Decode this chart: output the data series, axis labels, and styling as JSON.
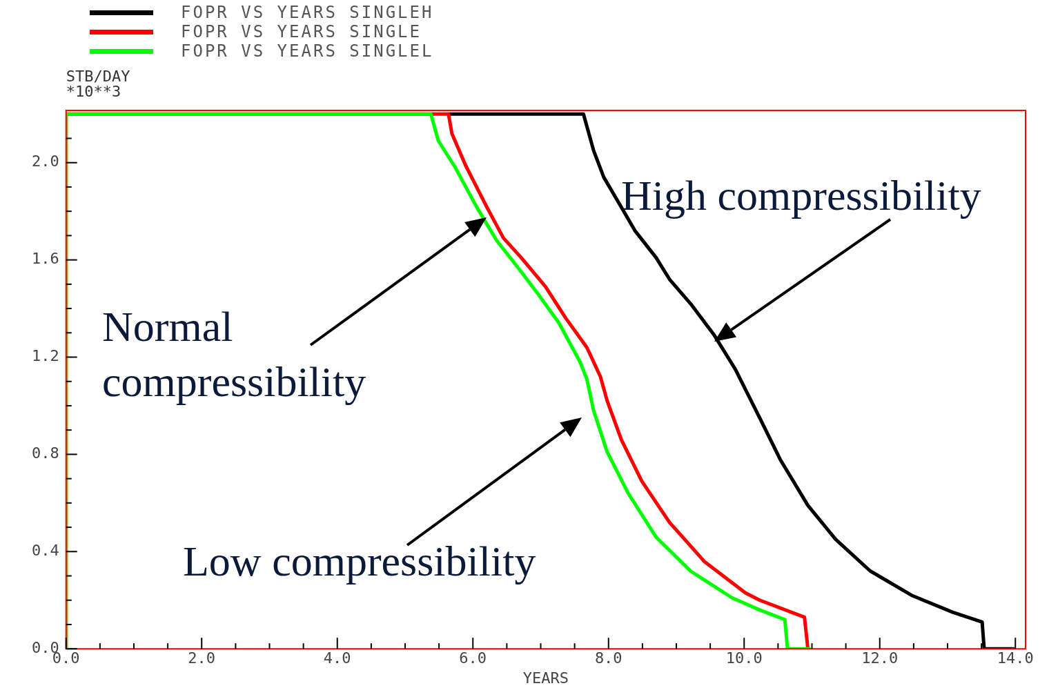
{
  "chart_data": {
    "type": "line",
    "xlabel": "YEARS",
    "ylabel": "STB/DAY\n*10**3",
    "legend": "top left",
    "grid": false,
    "line_style": "solid",
    "xlim": [
      0,
      14.15
    ],
    "ylim": [
      0,
      2.215
    ],
    "xticks": [
      {
        "value": 0,
        "label": "0.0"
      },
      {
        "value": 0.5,
        "label": null
      },
      {
        "value": 1,
        "label": null
      },
      {
        "value": 1.5,
        "label": null
      },
      {
        "value": 2,
        "label": "2.0"
      },
      {
        "value": 2.5,
        "label": null
      },
      {
        "value": 3,
        "label": null
      },
      {
        "value": 3.5,
        "label": null
      },
      {
        "value": 4,
        "label": "4.0"
      },
      {
        "value": 4.5,
        "label": null
      },
      {
        "value": 5,
        "label": null
      },
      {
        "value": 5.5,
        "label": null
      },
      {
        "value": 6,
        "label": "6.0"
      },
      {
        "value": 6.5,
        "label": null
      },
      {
        "value": 7,
        "label": null
      },
      {
        "value": 7.5,
        "label": null
      },
      {
        "value": 8,
        "label": "8.0"
      },
      {
        "value": 8.5,
        "label": null
      },
      {
        "value": 9,
        "label": null
      },
      {
        "value": 9.5,
        "label": null
      },
      {
        "value": 10,
        "label": "10.0"
      },
      {
        "value": 10.5,
        "label": null
      },
      {
        "value": 11,
        "label": null
      },
      {
        "value": 11.5,
        "label": null
      },
      {
        "value": 12,
        "label": "12.0"
      },
      {
        "value": 12.5,
        "label": null
      },
      {
        "value": 13,
        "label": null
      },
      {
        "value": 13.5,
        "label": null
      },
      {
        "value": 14,
        "label": "14.0"
      }
    ],
    "yticks": [
      {
        "value": 0,
        "label": "0.0"
      },
      {
        "value": 0.1,
        "label": null
      },
      {
        "value": 0.2,
        "label": null
      },
      {
        "value": 0.3,
        "label": null
      },
      {
        "value": 0.4,
        "label": "0.4"
      },
      {
        "value": 0.5,
        "label": null
      },
      {
        "value": 0.6,
        "label": null
      },
      {
        "value": 0.7,
        "label": null
      },
      {
        "value": 0.8,
        "label": "0.8"
      },
      {
        "value": 0.9,
        "label": null
      },
      {
        "value": 1,
        "label": null
      },
      {
        "value": 1.1,
        "label": null
      },
      {
        "value": 1.2,
        "label": "1.2"
      },
      {
        "value": 1.3,
        "label": null
      },
      {
        "value": 1.4,
        "label": null
      },
      {
        "value": 1.5,
        "label": null
      },
      {
        "value": 1.6,
        "label": "1.6"
      },
      {
        "value": 1.7,
        "label": null
      },
      {
        "value": 1.8,
        "label": null
      },
      {
        "value": 1.9,
        "label": null
      },
      {
        "value": 2,
        "label": "2.0"
      },
      {
        "value": 2.1,
        "label": null
      }
    ],
    "series": [
      {
        "name": "FOPR VS YEARS SINGLEH",
        "color": "#000000",
        "x": [
          5.64,
          7.63,
          7.78,
          7.93,
          8.14,
          8.39,
          8.7,
          8.9,
          9.21,
          9.56,
          9.87,
          10.23,
          10.53,
          10.94,
          11.35,
          11.86,
          12.47,
          13.08,
          13.51,
          13.54,
          13.97
        ],
        "values": [
          2.2,
          2.2,
          2.05,
          1.94,
          1.84,
          1.72,
          1.61,
          1.52,
          1.42,
          1.29,
          1.15,
          0.95,
          0.78,
          0.59,
          0.45,
          0.32,
          0.22,
          0.15,
          0.11,
          0,
          0
        ]
      },
      {
        "name": "FOPR VS YEARS SINGLE",
        "color": "#ff0000",
        "x": [
          0,
          0,
          5.64,
          5.69,
          5.89,
          6.2,
          6.45,
          6.71,
          7.07,
          7.37,
          7.68,
          7.88,
          7.98,
          8.19,
          8.49,
          8.9,
          9.41,
          10.02,
          10.23,
          10.89,
          10.94
        ],
        "values": [
          0,
          2.2,
          2.2,
          2.12,
          1.99,
          1.82,
          1.69,
          1.61,
          1.49,
          1.36,
          1.24,
          1.12,
          1.02,
          0.86,
          0.69,
          0.52,
          0.36,
          0.23,
          0.2,
          0.13,
          0
        ]
      },
      {
        "name": "FOPR VS YEARS SINGLEL",
        "color": "#00ff00",
        "x": [
          0,
          0,
          5.38,
          5.49,
          5.74,
          6.05,
          6.35,
          6.66,
          6.96,
          7.27,
          7.58,
          7.68,
          7.78,
          7.98,
          8.29,
          8.7,
          9.21,
          9.82,
          10.23,
          10.6,
          10.64,
          10.96
        ],
        "values": [
          0,
          2.2,
          2.2,
          2.09,
          1.98,
          1.82,
          1.68,
          1.57,
          1.46,
          1.34,
          1.18,
          1.11,
          0.98,
          0.81,
          0.64,
          0.46,
          0.32,
          0.21,
          0.16,
          0.12,
          0,
          0
        ]
      }
    ],
    "annotations": [
      "High compressibility",
      "Normal compressibility",
      "Low compressibility"
    ]
  }
}
